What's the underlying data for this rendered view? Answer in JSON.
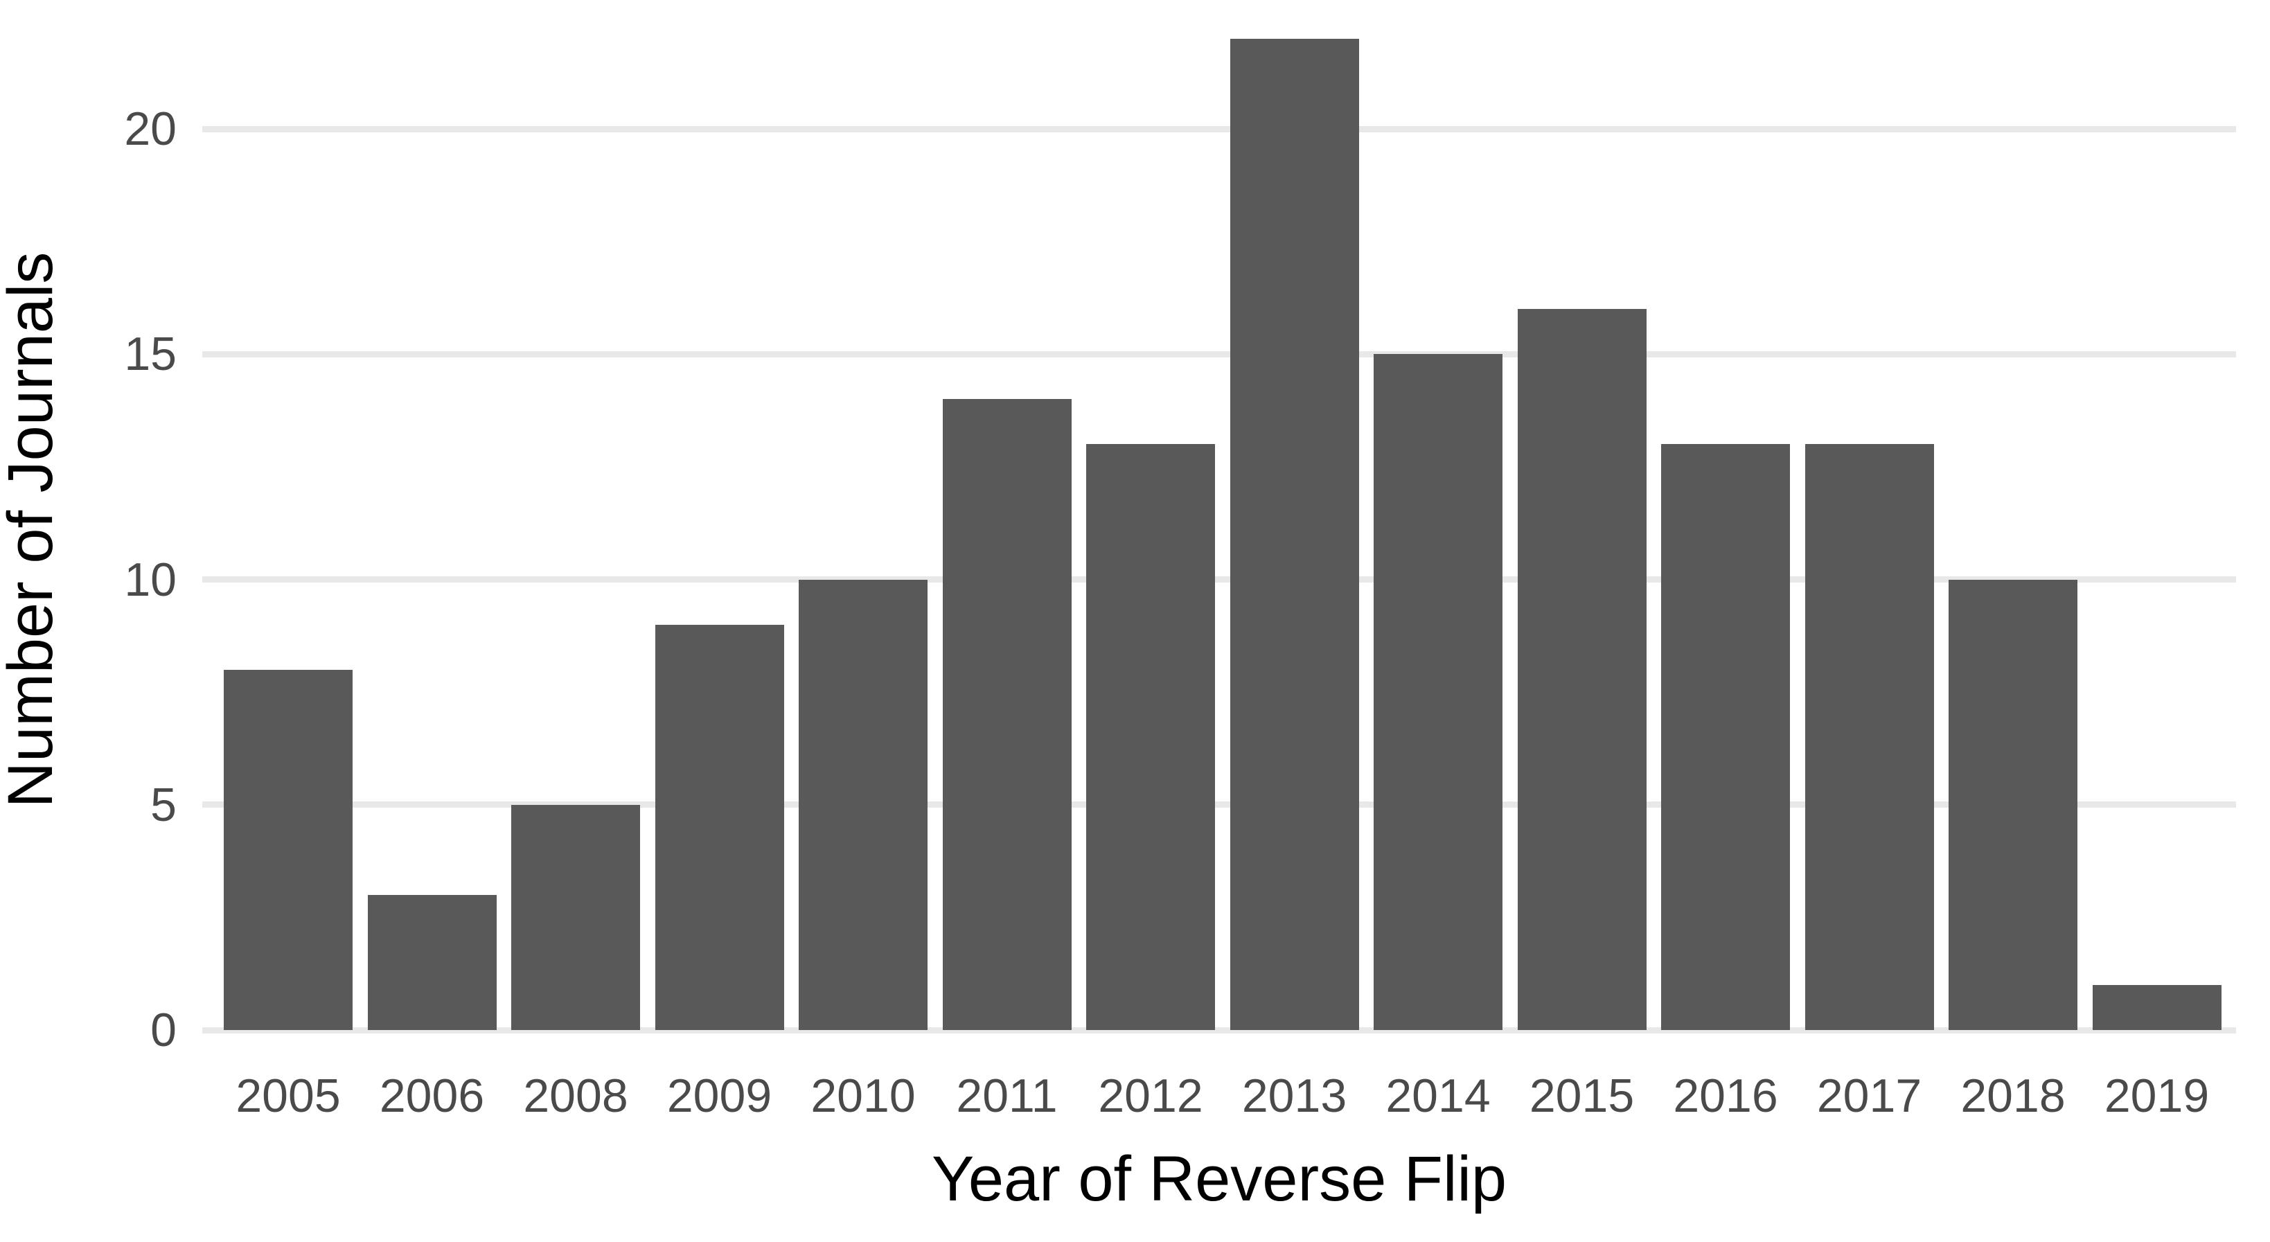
{
  "chart_data": {
    "type": "bar",
    "title": "",
    "xlabel": "Year of Reverse Flip",
    "ylabel": "Number of Journals",
    "categories": [
      "2005",
      "2006",
      "2008",
      "2009",
      "2010",
      "2011",
      "2012",
      "2013",
      "2014",
      "2015",
      "2016",
      "2017",
      "2018",
      "2019"
    ],
    "values": [
      8,
      3,
      5,
      9,
      10,
      14,
      13,
      22,
      15,
      16,
      13,
      13,
      10,
      1
    ],
    "yticks": [
      0,
      5,
      10,
      15,
      20
    ],
    "ylim": [
      0,
      22.9
    ],
    "grid": "horizontal-major-only",
    "legend": "none",
    "colors": {
      "bar_fill": "#595959",
      "gridline": "#e8e8e8",
      "tick_label": "#4a4a4a",
      "axis_title": "#000000",
      "background": "#ffffff"
    }
  }
}
